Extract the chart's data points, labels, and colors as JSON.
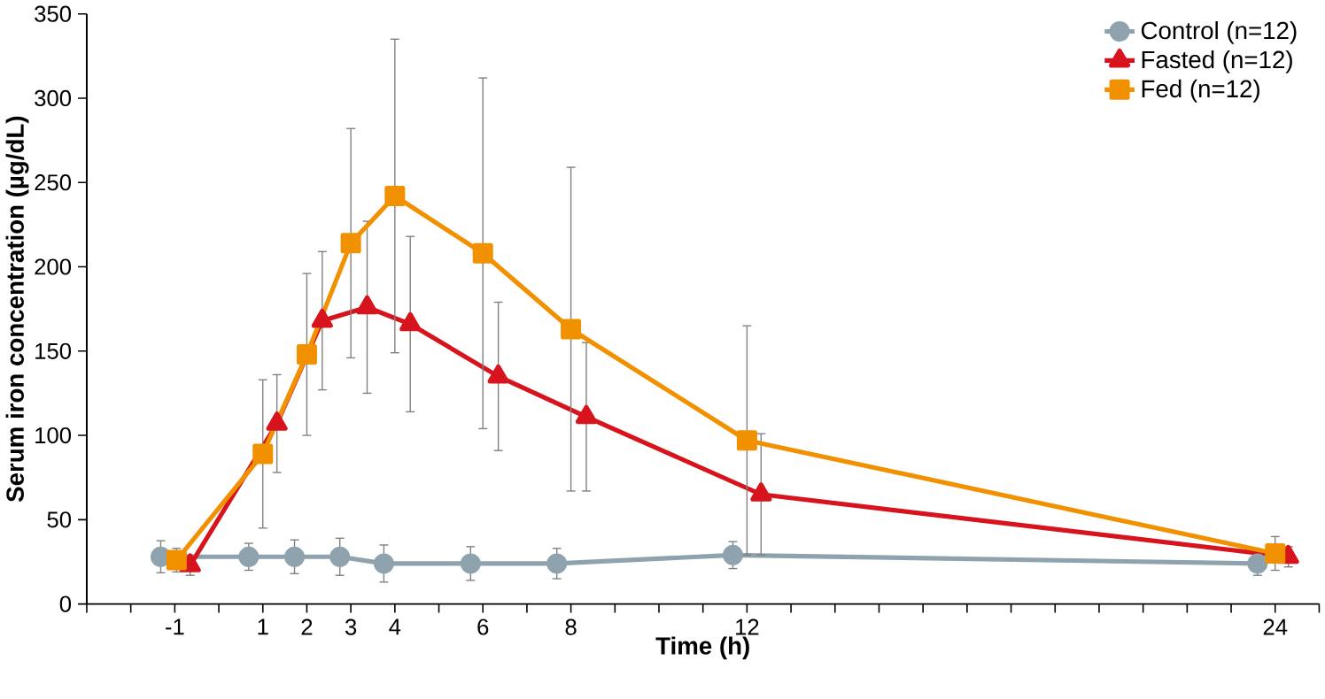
{
  "chart_data": {
    "type": "line",
    "xlabel": "Time (h)",
    "ylabel": "Serum iron concentration (µg/dL)",
    "xlim": [
      -3,
      25
    ],
    "xticks": [
      {
        "value": -3,
        "label": null
      },
      {
        "value": -2,
        "label": null
      },
      -1,
      {
        "value": 0,
        "label": null
      },
      1,
      2,
      3,
      4,
      {
        "value": 5,
        "label": null
      },
      6,
      {
        "value": 7,
        "label": null
      },
      8,
      {
        "value": 9,
        "label": null
      },
      {
        "value": 10,
        "label": null
      },
      {
        "value": 11,
        "label": null
      },
      12,
      {
        "value": 13,
        "label": null
      },
      {
        "value": 14,
        "label": null
      },
      {
        "value": 15,
        "label": null
      },
      {
        "value": 16,
        "label": null
      },
      {
        "value": 17,
        "label": null
      },
      {
        "value": 18,
        "label": null
      },
      {
        "value": 19,
        "label": null
      },
      {
        "value": 20,
        "label": null
      },
      {
        "value": 21,
        "label": null
      },
      {
        "value": 22,
        "label": null
      },
      {
        "value": 23,
        "label": null
      },
      24,
      {
        "value": 25,
        "label": null
      }
    ],
    "ylim": [
      0,
      350
    ],
    "yticks": [
      0,
      50,
      100,
      150,
      200,
      250,
      300,
      350
    ],
    "grid": false,
    "legend": "top right",
    "line_style": "solid",
    "series": [
      {
        "name": "Control (n=12)",
        "color": "#8fa3ae",
        "marker": "circle",
        "x": [
          -1.32,
          0.68,
          1.72,
          2.75,
          3.75,
          5.72,
          7.68,
          11.68,
          23.6
        ],
        "values": [
          28,
          28,
          28,
          28,
          24,
          24,
          24,
          29,
          24
        ],
        "errors": [
          9.5,
          8,
          10,
          11,
          11,
          10,
          9,
          8,
          7
        ]
      },
      {
        "name": "Fasted (n=12)",
        "color": "#d7141e",
        "marker": "triangle",
        "x": [
          -0.65,
          1.32,
          2.35,
          3.37,
          4.35,
          6.35,
          8.35,
          12.32,
          24.3
        ],
        "values": [
          23,
          107,
          168,
          176,
          166,
          135,
          111,
          65,
          28
        ],
        "errors": [
          6,
          29,
          41,
          51,
          52,
          44,
          44,
          36,
          6
        ]
      },
      {
        "name": "Fed (n=12)",
        "color": "#f29100",
        "marker": "square",
        "x": [
          -0.96,
          1,
          2,
          3,
          4,
          6,
          8,
          12,
          24
        ],
        "values": [
          26,
          89,
          148,
          214,
          242,
          208,
          163,
          97,
          30
        ],
        "errors": [
          7,
          44,
          48,
          68,
          93,
          104,
          96,
          68,
          10
        ]
      }
    ]
  }
}
